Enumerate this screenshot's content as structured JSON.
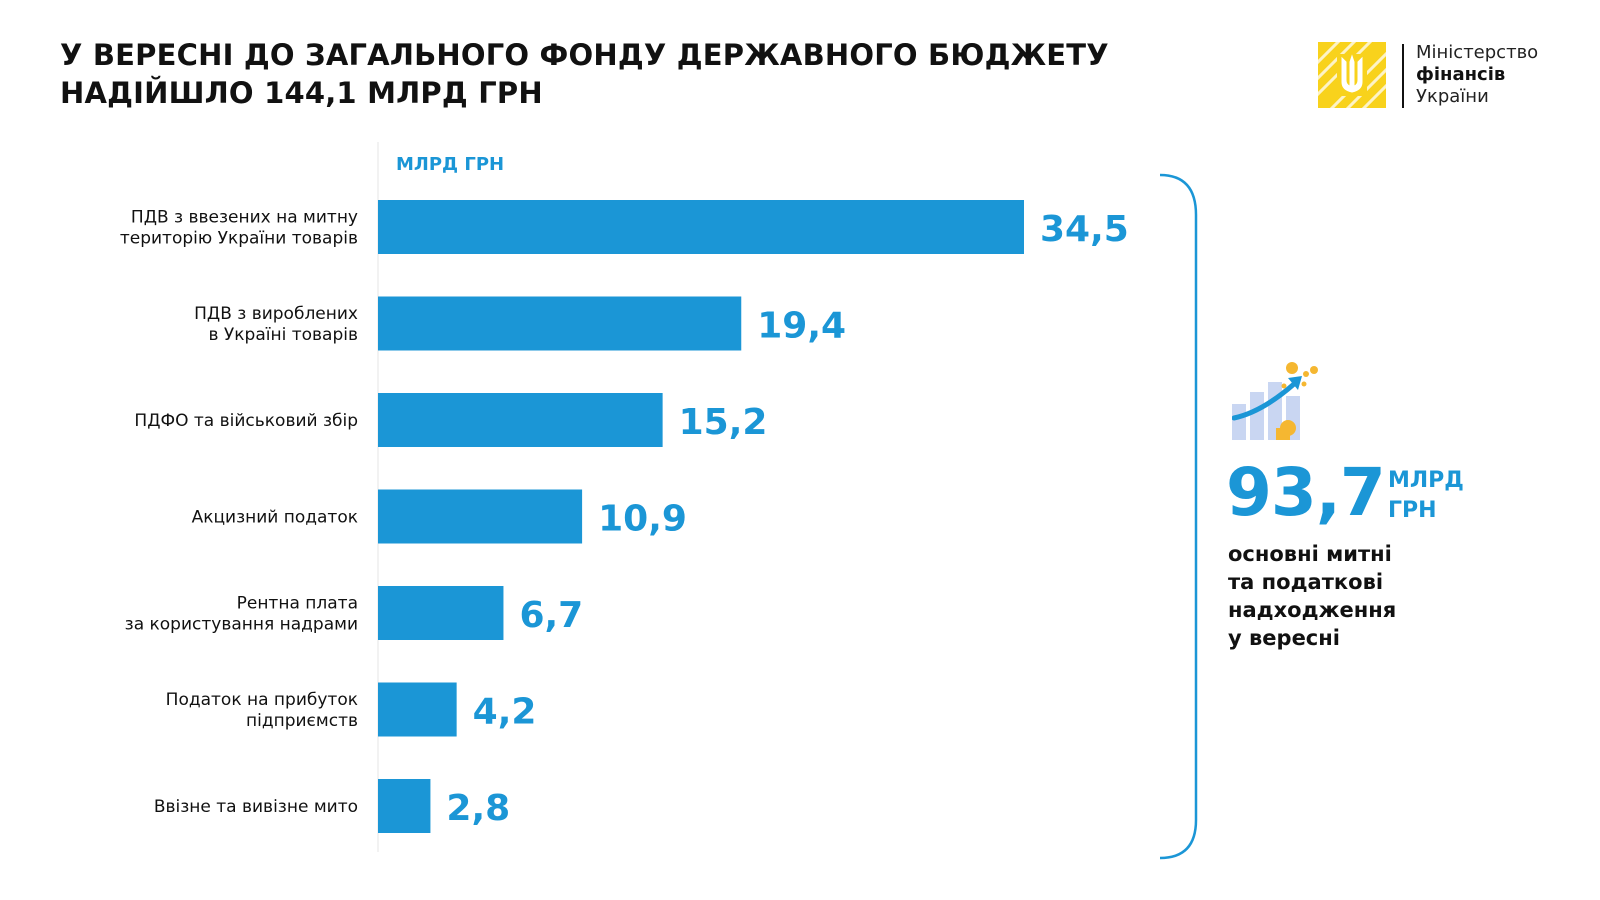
{
  "title": {
    "line1": "У ВЕРЕСНІ ДО ЗАГАЛЬНОГО ФОНДУ ДЕРЖАВНОГО БЮДЖЕТУ",
    "line2": "НАДІЙШЛО 144,1 МЛРД ГРН"
  },
  "logo": {
    "line1": "Міністерство",
    "line2": "фінансів",
    "line3": "України",
    "icon": "trident-emblem-icon",
    "color": "#F8D21C"
  },
  "summary": {
    "value": "93,7",
    "unit_line1": "МЛРД",
    "unit_line2": "ГРН",
    "desc_line1": "основні митні",
    "desc_line2": "та податкові",
    "desc_line3": "надходження",
    "desc_line4": "у вересні",
    "icon": "growth-chart-coins-icon"
  },
  "colors": {
    "bar": "#1B96D6",
    "accent": "#1B96D6",
    "text": "#111111"
  },
  "chart_data": {
    "type": "bar",
    "orientation": "horizontal",
    "unit_label": "МЛРД ГРН",
    "categories": [
      [
        "ПДВ з ввезених на митну",
        "територію України товарів"
      ],
      [
        "ПДВ з вироблених",
        "в Україні товарів"
      ],
      [
        "ПДФО та військовий збір"
      ],
      [
        "Акцизний податок"
      ],
      [
        "Рентна плата",
        "за користування надрами"
      ],
      [
        "Податок на прибуток",
        "підприємств"
      ],
      [
        "Ввізне та вивізне мито"
      ]
    ],
    "values": [
      34.5,
      19.4,
      15.2,
      10.9,
      6.7,
      4.2,
      2.8
    ],
    "value_labels": [
      "34,5",
      "19,4",
      "15,2",
      "10,9",
      "6,7",
      "4,2",
      "2,8"
    ],
    "xlim": [
      0,
      34.5
    ],
    "grid": false,
    "legend": "none"
  }
}
